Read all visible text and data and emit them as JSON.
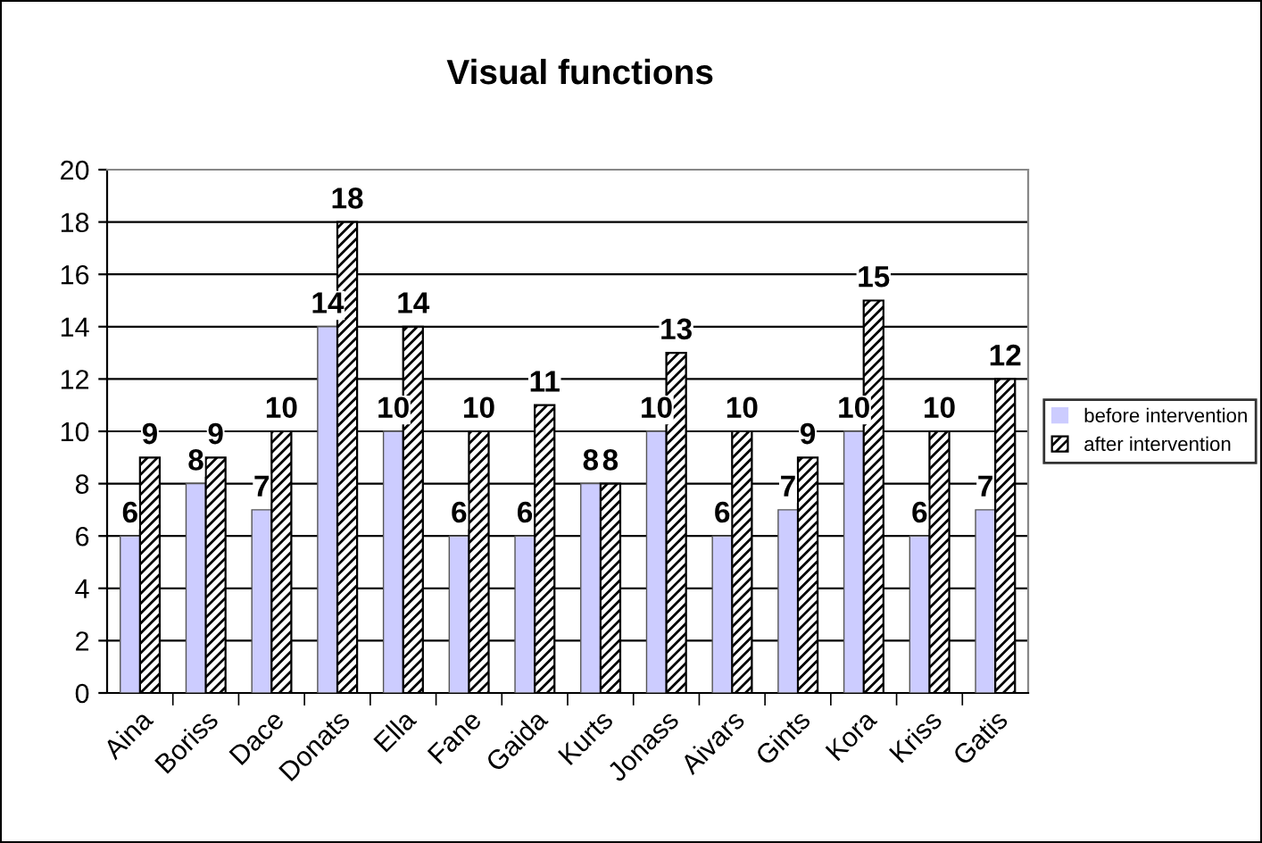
{
  "chart_data": {
    "type": "bar",
    "title": "Visual functions",
    "categories": [
      "Aina",
      "Boriss",
      "Dace",
      "Donats",
      "Ella",
      "Fane",
      "Gaida",
      "Kurts",
      "Jonass",
      "Aivars",
      "Gints",
      "Kora",
      "Kriss",
      "Gatis"
    ],
    "series": [
      {
        "name": "before intervention",
        "color": "#ccccff",
        "values": [
          6,
          8,
          7,
          14,
          10,
          6,
          6,
          8,
          10,
          6,
          7,
          10,
          6,
          7
        ]
      },
      {
        "name": "after intervention",
        "color": "#000000",
        "values": [
          9,
          9,
          10,
          18,
          14,
          10,
          11,
          8,
          13,
          10,
          9,
          15,
          10,
          12
        ]
      }
    ],
    "ylim": [
      0,
      20
    ],
    "yticks": [
      0,
      2,
      4,
      6,
      8,
      10,
      12,
      14,
      16,
      18,
      20
    ],
    "grid": "y",
    "legend": "right",
    "data_labels": true
  }
}
